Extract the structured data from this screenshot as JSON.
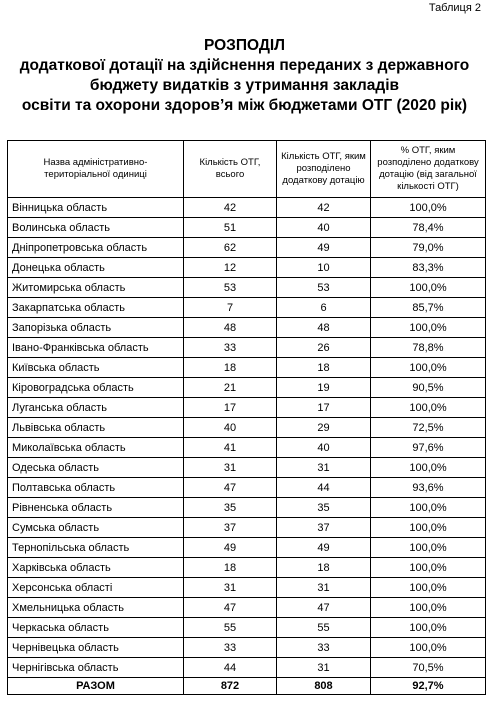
{
  "header": {
    "label": "Таблиця 2",
    "title": "РОЗПОДІЛ",
    "subtitle_lines": [
      "додаткової дотації на здійснення переданих з державного",
      "бюджету видатків з утримання закладів",
      "освіти та охорони здоров’я між бюджетами ОТГ (2020 рік)"
    ]
  },
  "table": {
    "columns": [
      "Назва адміністративно-територіальної одиниці",
      "Кількість ОТГ, всього",
      "Кількість ОТГ, яким розподілено додаткову дотацію",
      "% ОТГ, яким розподілено додаткову дотацію (від загальної кількості ОТГ)"
    ],
    "rows": [
      [
        "Вінницька область",
        "42",
        "42",
        "100,0%"
      ],
      [
        "Волинська область",
        "51",
        "40",
        "78,4%"
      ],
      [
        "Дніпропетровська область",
        "62",
        "49",
        "79,0%"
      ],
      [
        "Донецька область",
        "12",
        "10",
        "83,3%"
      ],
      [
        "Житомирська область",
        "53",
        "53",
        "100,0%"
      ],
      [
        "Закарпатська область",
        "7",
        "6",
        "85,7%"
      ],
      [
        "Запорізька область",
        "48",
        "48",
        "100,0%"
      ],
      [
        "Івано-Франківська область",
        "33",
        "26",
        "78,8%"
      ],
      [
        "Київська область",
        "18",
        "18",
        "100,0%"
      ],
      [
        "Кіровоградська область",
        "21",
        "19",
        "90,5%"
      ],
      [
        "Луганська область",
        "17",
        "17",
        "100,0%"
      ],
      [
        "Львівська область",
        "40",
        "29",
        "72,5%"
      ],
      [
        "Миколаївська область",
        "41",
        "40",
        "97,6%"
      ],
      [
        "Одеська область",
        "31",
        "31",
        "100,0%"
      ],
      [
        "Полтавська область",
        "47",
        "44",
        "93,6%"
      ],
      [
        "Рівненська область",
        "35",
        "35",
        "100,0%"
      ],
      [
        "Сумська область",
        "37",
        "37",
        "100,0%"
      ],
      [
        "Тернопільська область",
        "49",
        "49",
        "100,0%"
      ],
      [
        "Харківська область",
        "18",
        "18",
        "100,0%"
      ],
      [
        "Херсонська області",
        "31",
        "31",
        "100,0%"
      ],
      [
        "Хмельницька область",
        "47",
        "47",
        "100,0%"
      ],
      [
        "Черкаська область",
        "55",
        "55",
        "100,0%"
      ],
      [
        "Чернівецька область",
        "33",
        "33",
        "100,0%"
      ],
      [
        "Чернігівська область",
        "44",
        "31",
        "70,5%"
      ]
    ],
    "total": [
      "РАЗОМ",
      "872",
      "808",
      "92,7%"
    ]
  }
}
